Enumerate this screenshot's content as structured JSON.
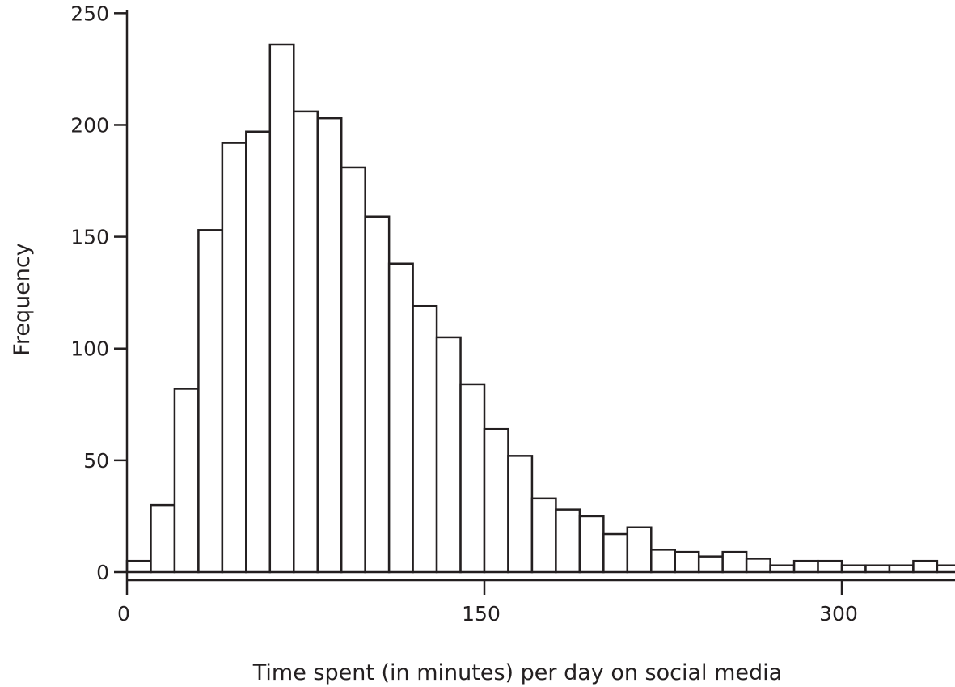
{
  "chart_data": {
    "type": "bar",
    "xlabel": "Time spent (in minutes) per day on social media",
    "ylabel": "Frequency",
    "xlim": [
      0,
      350
    ],
    "ylim": [
      0,
      260
    ],
    "bin_width": 10,
    "x_ticks": [
      {
        "value": 0,
        "label": "0"
      },
      {
        "value": 150,
        "label": "150"
      },
      {
        "value": 300,
        "label": "300"
      }
    ],
    "y_ticks": [
      {
        "value": 0,
        "label": "0"
      },
      {
        "value": 50,
        "label": "50"
      },
      {
        "value": 100,
        "label": "100"
      },
      {
        "value": 150,
        "label": "150"
      },
      {
        "value": 200,
        "label": "200"
      },
      {
        "value": 250,
        "label": "250"
      }
    ],
    "bins": [
      0,
      10,
      20,
      30,
      40,
      50,
      60,
      70,
      80,
      90,
      100,
      110,
      120,
      130,
      140,
      150,
      160,
      170,
      180,
      190,
      200,
      210,
      220,
      230,
      240,
      250,
      260,
      270,
      280,
      290,
      300,
      310,
      320,
      330,
      340
    ],
    "values": [
      5,
      30,
      82,
      153,
      192,
      197,
      236,
      206,
      203,
      181,
      159,
      138,
      119,
      105,
      84,
      64,
      52,
      33,
      28,
      25,
      17,
      20,
      10,
      9,
      7,
      9,
      6,
      3,
      5,
      5,
      3,
      3,
      3,
      5,
      3
    ],
    "grid": false,
    "bar_fill": "#ffffff",
    "bar_stroke": "#231f20"
  }
}
